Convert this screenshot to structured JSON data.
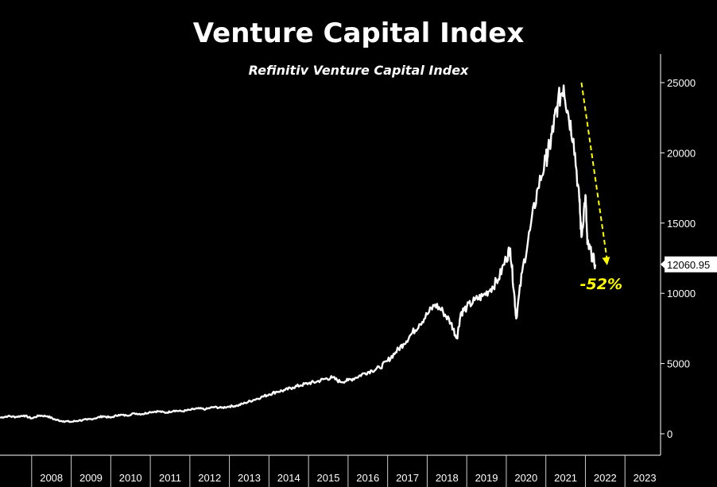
{
  "chart_data": {
    "type": "line",
    "title": "Venture Capital Index",
    "subtitle": "Refinitiv Venture Capital Index",
    "xlabel": "",
    "ylabel": "",
    "x_ticks": [
      "2008",
      "2009",
      "2010",
      "2011",
      "2012",
      "2013",
      "2014",
      "2015",
      "2016",
      "2017",
      "2018",
      "2019",
      "2020",
      "2021",
      "2022",
      "2023"
    ],
    "y_ticks": [
      0,
      5000,
      10000,
      15000,
      20000,
      25000
    ],
    "xlim": [
      2007.2,
      2023.9
    ],
    "ylim": [
      -500,
      27000
    ],
    "grid": false,
    "legend": "none",
    "series": [
      {
        "x": [
          2007.2,
          2007.4,
          2007.6,
          2007.8,
          2008.0,
          2008.2,
          2008.4,
          2008.6,
          2008.8,
          2009.0,
          2009.2,
          2009.4,
          2009.6,
          2009.8,
          2010.0,
          2010.2,
          2010.4,
          2010.6,
          2010.8,
          2011.0,
          2011.2,
          2011.4,
          2011.6,
          2011.8,
          2012.0,
          2012.2,
          2012.4,
          2012.6,
          2012.8,
          2013.0,
          2013.2,
          2013.4,
          2013.6,
          2013.8,
          2014.0,
          2014.2,
          2014.4,
          2014.6,
          2014.8,
          2015.0,
          2015.2,
          2015.4,
          2015.6,
          2015.8,
          2016.0,
          2016.2,
          2016.4,
          2016.6,
          2016.8,
          2017.0,
          2017.2,
          2017.4,
          2017.6,
          2017.8,
          2018.0,
          2018.2,
          2018.4,
          2018.6,
          2018.75,
          2018.85,
          2019.0,
          2019.2,
          2019.4,
          2019.6,
          2019.8,
          2020.0,
          2020.1,
          2020.2,
          2020.25,
          2020.4,
          2020.6,
          2020.8,
          2021.0,
          2021.1,
          2021.2,
          2021.3,
          2021.45,
          2021.55,
          2021.7,
          2021.85,
          2021.9,
          2022.0,
          2022.05,
          2022.15,
          2022.25
        ],
        "values": [
          1150,
          1250,
          1200,
          1300,
          1100,
          1300,
          1250,
          1000,
          900,
          850,
          950,
          1000,
          1100,
          1250,
          1150,
          1350,
          1300,
          1450,
          1400,
          1550,
          1600,
          1500,
          1650,
          1600,
          1700,
          1800,
          1750,
          1900,
          1850,
          1950,
          2000,
          2200,
          2400,
          2600,
          2800,
          3000,
          3100,
          3300,
          3450,
          3600,
          3700,
          3900,
          4000,
          3700,
          3800,
          4000,
          4300,
          4500,
          4700,
          5200,
          5800,
          6400,
          7100,
          7800,
          8500,
          9200,
          8700,
          7900,
          6800,
          8600,
          9000,
          9500,
          9800,
          10300,
          11000,
          12500,
          13200,
          10000,
          8200,
          11500,
          14500,
          17500,
          19500,
          20500,
          22000,
          23500,
          24800,
          23000,
          21000,
          16500,
          14000,
          17000,
          13500,
          12800,
          12060.95
        ]
      }
    ],
    "annotations": [
      {
        "type": "arrow",
        "color": "#ffff00",
        "style": "dashed",
        "from": [
          2021.9,
          25000
        ],
        "to": [
          2022.55,
          12000
        ]
      },
      {
        "type": "text",
        "text": "-52%",
        "color": "#ffff00",
        "at": [
          2022.4,
          10300
        ]
      }
    ],
    "last_value": {
      "text": "12060.95",
      "value": 12060.95
    },
    "colors": {
      "background": "#000000",
      "line": "#ffffff",
      "axis": "#ffffff",
      "annotation": "#ffff00"
    }
  }
}
